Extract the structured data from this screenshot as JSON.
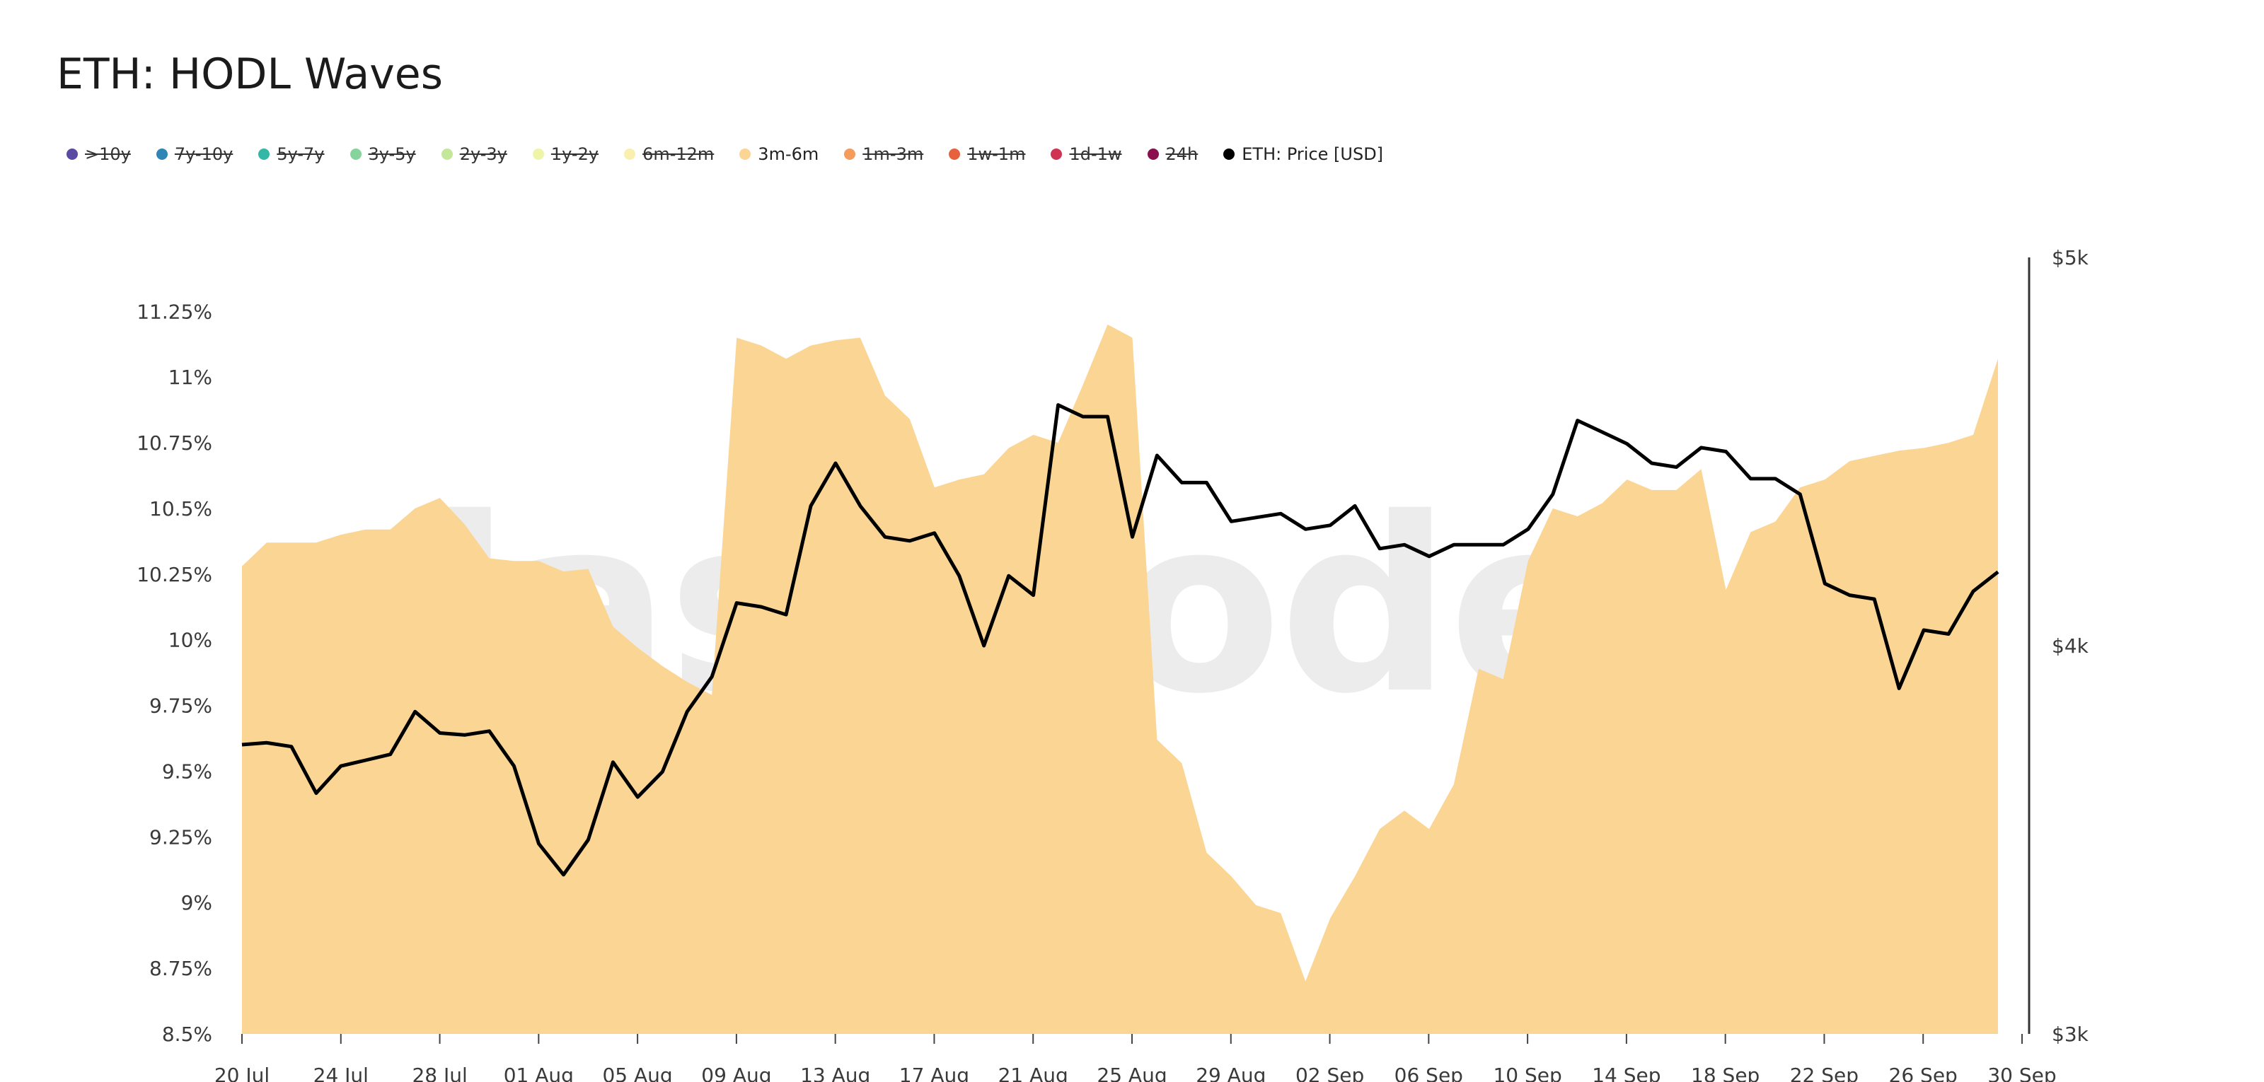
{
  "title": "ETH: HODL Waves",
  "watermark": "glassnode",
  "legend": [
    {
      "label": ">10y",
      "color": "#5b4aa3",
      "active": false
    },
    {
      "label": "7y-10y",
      "color": "#2f86b5",
      "active": false
    },
    {
      "label": "5y-7y",
      "color": "#33b7a7",
      "active": false
    },
    {
      "label": "3y-5y",
      "color": "#86d49c",
      "active": false
    },
    {
      "label": "2y-3y",
      "color": "#c4e79a",
      "active": false
    },
    {
      "label": "1y-2y",
      "color": "#eef5a9",
      "active": false
    },
    {
      "label": "6m-12m",
      "color": "#faefae",
      "active": false
    },
    {
      "label": "3m-6m",
      "color": "#fbd593",
      "active": true
    },
    {
      "label": "1m-3m",
      "color": "#f59c5c",
      "active": false
    },
    {
      "label": "1w-1m",
      "color": "#e8613f",
      "active": false
    },
    {
      "label": "1d-1w",
      "color": "#cf3452",
      "active": false
    },
    {
      "label": "24h",
      "color": "#8a0f4c",
      "active": false
    },
    {
      "label": "ETH: Price [USD]",
      "color": "#000000",
      "active": true
    }
  ],
  "chart_data": {
    "type": "area",
    "title": "ETH: HODL Waves",
    "x_start": "20 Jul",
    "x_end": "30 Sep",
    "x_tick_labels": [
      "20 Jul",
      "24 Jul",
      "28 Jul",
      "01 Aug",
      "05 Aug",
      "09 Aug",
      "13 Aug",
      "17 Aug",
      "21 Aug",
      "25 Aug",
      "29 Aug",
      "02 Sep",
      "06 Sep",
      "10 Sep",
      "14 Sep",
      "18 Sep",
      "22 Sep",
      "26 Sep",
      "30 Sep"
    ],
    "y_left": {
      "min": 8.5,
      "max": 11.45,
      "unit": "%",
      "tick_values": [
        8.5,
        8.75,
        9,
        9.25,
        9.5,
        9.75,
        10,
        10.25,
        10.5,
        10.75,
        11,
        11.25
      ],
      "tick_labels": [
        "8.5%",
        "8.75%",
        "9%",
        "9.25%",
        "9.5%",
        "9.75%",
        "10%",
        "10.25%",
        "10.5%",
        "10.75%",
        "11%",
        "11.25%"
      ]
    },
    "y_right": {
      "min": 3000,
      "max": 5000,
      "unit": "USD",
      "tick_values": [
        3000,
        4000,
        5000
      ],
      "tick_labels": [
        "$3k",
        "$4k",
        "$5k"
      ]
    },
    "grid": false,
    "legend_position": "top-left",
    "series": [
      {
        "name": "3m-6m",
        "type": "area",
        "axis": "left",
        "color": "#fbd593",
        "values": [
          10.28,
          10.37,
          10.37,
          10.37,
          10.4,
          10.42,
          10.42,
          10.5,
          10.54,
          10.44,
          10.31,
          10.3,
          10.3,
          10.26,
          10.27,
          10.05,
          9.97,
          9.9,
          9.84,
          9.79,
          11.15,
          11.12,
          11.07,
          11.12,
          11.14,
          11.15,
          10.93,
          10.84,
          10.58,
          10.61,
          10.63,
          10.73,
          10.78,
          10.75,
          10.97,
          11.2,
          11.15,
          9.62,
          9.53,
          9.19,
          9.1,
          8.99,
          8.96,
          8.7,
          8.94,
          9.1,
          9.28,
          9.35,
          9.28,
          9.45,
          9.89,
          9.85,
          10.3,
          10.5,
          10.47,
          10.52,
          10.61,
          10.57,
          10.57,
          10.65,
          10.19,
          10.41,
          10.45,
          10.58,
          10.61,
          10.68,
          10.7,
          10.72,
          10.73,
          10.75,
          10.78,
          11.07
        ]
      },
      {
        "name": "ETH: Price [USD]",
        "type": "line",
        "axis": "right",
        "color": "#000000",
        "values": [
          3745,
          3750,
          3740,
          3620,
          3690,
          3705,
          3720,
          3830,
          3775,
          3770,
          3780,
          3690,
          3490,
          3410,
          3500,
          3700,
          3610,
          3675,
          3830,
          3920,
          4110,
          4100,
          4080,
          4360,
          4470,
          4360,
          4280,
          4270,
          4290,
          4180,
          4000,
          4180,
          4130,
          4620,
          4590,
          4590,
          4280,
          4490,
          4420,
          4420,
          4320,
          4330,
          4340,
          4300,
          4310,
          4360,
          4250,
          4260,
          4230,
          4260,
          4260,
          4260,
          4300,
          4390,
          4580,
          4550,
          4520,
          4470,
          4460,
          4510,
          4500,
          4430,
          4430,
          4390,
          4160,
          4130,
          4120,
          3890,
          4040,
          4030,
          4140,
          4190
        ]
      }
    ]
  }
}
